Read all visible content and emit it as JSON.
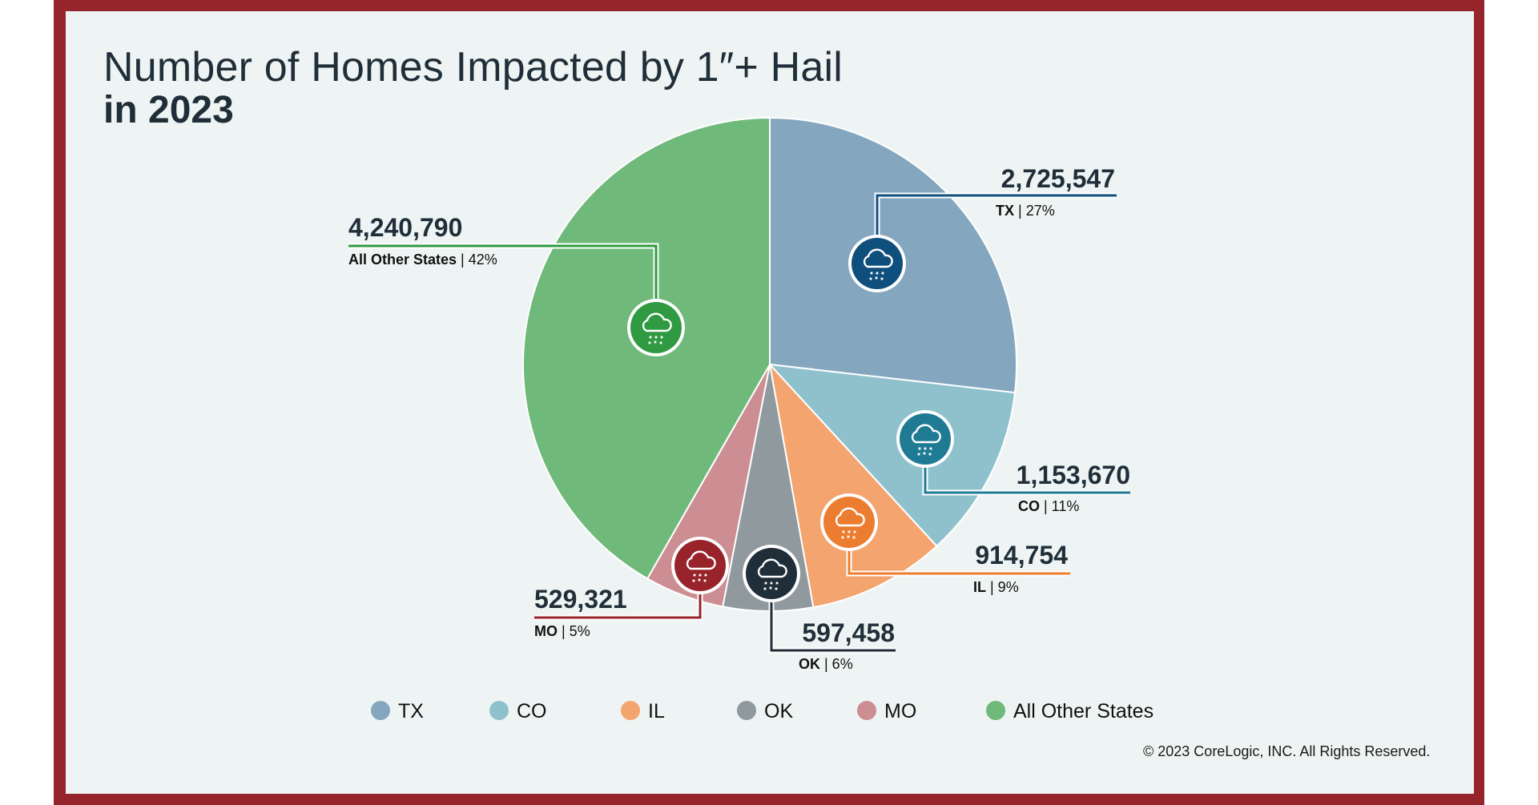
{
  "title_line1": "Number of Homes Impacted by 1″+ Hail",
  "title_line2": "in 2023",
  "copyright": "© 2023 CoreLogic, INC. All Rights Reserved.",
  "colors": {
    "frame": "#96252b",
    "background": "#eef4f3",
    "text": "#1f2e38"
  },
  "chart_data": {
    "type": "pie",
    "title": "Number of Homes Impacted by 1″+ Hail in 2023",
    "start": "12 o'clock",
    "direction": "clockwise",
    "legend_position": "bottom",
    "slices": [
      {
        "key": "TX",
        "label": "TX",
        "value": 2725547,
        "value_label": "2,725,547",
        "percent": 27,
        "percent_label": "27%",
        "slice_color": "#84a7bf",
        "icon_color": "#0f4f7d",
        "line_color": "#0f4f7d",
        "icon": "hail-cloud-icon"
      },
      {
        "key": "CO",
        "label": "CO",
        "value": 1153670,
        "value_label": "1,153,670",
        "percent": 11,
        "percent_label": "11%",
        "slice_color": "#8fc1cd",
        "icon_color": "#1f7b94",
        "line_color": "#1f7b94",
        "icon": "hail-cloud-icon"
      },
      {
        "key": "IL",
        "label": "IL",
        "value": 914754,
        "value_label": "914,754",
        "percent": 9,
        "percent_label": "9%",
        "slice_color": "#f4a46e",
        "icon_color": "#ec7d30",
        "line_color": "#ec7d30",
        "icon": "hail-cloud-icon"
      },
      {
        "key": "OK",
        "label": "OK",
        "value": 597458,
        "value_label": "597,458",
        "percent": 6,
        "percent_label": "6%",
        "slice_color": "#8f999e",
        "icon_color": "#1f2e38",
        "line_color": "#1f2e38",
        "icon": "hail-cloud-icon"
      },
      {
        "key": "MO",
        "label": "MO",
        "value": 529321,
        "value_label": "529,321",
        "percent": 5,
        "percent_label": "5%",
        "slice_color": "#cc8e93",
        "icon_color": "#98232a",
        "line_color": "#98232a",
        "icon": "hail-cloud-icon"
      },
      {
        "key": "OTHER",
        "label": "All Other States",
        "value": 4240790,
        "value_label": "4,240,790",
        "percent": 42,
        "percent_label": "42%",
        "slice_color": "#6fb97a",
        "icon_color": "#2f9a41",
        "line_color": "#2f9a41",
        "icon": "hail-cloud-icon"
      }
    ],
    "legend": [
      "TX",
      "CO",
      "IL",
      "OK",
      "MO",
      "All Other States"
    ]
  }
}
